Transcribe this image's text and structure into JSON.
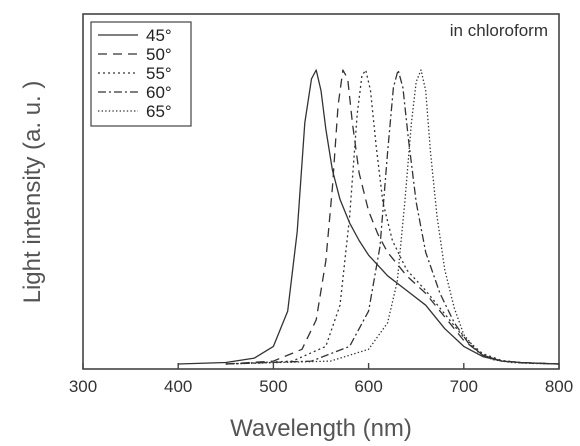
{
  "chart_data": {
    "type": "line",
    "title": "",
    "annotation": "in chloroform",
    "xlabel": "Wavelength (nm)",
    "ylabel": "Light intensity (a. u. )",
    "xlim": [
      300,
      800
    ],
    "ylim": [
      0,
      1.08
    ],
    "x_ticks": [
      "300",
      "400",
      "500",
      "600",
      "700",
      "800"
    ],
    "grid": false,
    "legend_position": "top-left",
    "series": [
      {
        "name": "45°",
        "dash": "solid",
        "x": [
          400,
          450,
          480,
          500,
          515,
          525,
          533,
          540,
          545,
          550,
          555,
          562,
          570,
          580,
          590,
          600,
          620,
          640,
          660,
          680,
          700,
          720,
          740,
          760,
          780,
          800
        ],
        "y": [
          0.0,
          0.005,
          0.02,
          0.06,
          0.18,
          0.45,
          0.82,
          0.97,
          1.0,
          0.93,
          0.8,
          0.66,
          0.56,
          0.48,
          0.42,
          0.37,
          0.3,
          0.25,
          0.2,
          0.12,
          0.06,
          0.025,
          0.01,
          0.005,
          0.002,
          0.0
        ]
      },
      {
        "name": "50°",
        "dash": "dashed",
        "x": [
          450,
          500,
          530,
          545,
          555,
          562,
          568,
          573,
          578,
          583,
          590,
          600,
          610,
          620,
          640,
          660,
          680,
          700,
          720,
          740,
          760,
          800
        ],
        "y": [
          0.0,
          0.01,
          0.05,
          0.15,
          0.35,
          0.6,
          0.88,
          1.0,
          0.97,
          0.82,
          0.65,
          0.52,
          0.44,
          0.38,
          0.3,
          0.24,
          0.16,
          0.08,
          0.03,
          0.01,
          0.005,
          0.0
        ]
      },
      {
        "name": "55°",
        "dash": "dotted",
        "x": [
          450,
          520,
          555,
          570,
          580,
          588,
          593,
          597,
          602,
          608,
          615,
          625,
          640,
          660,
          680,
          700,
          720,
          740,
          760,
          800
        ],
        "y": [
          0.0,
          0.01,
          0.06,
          0.2,
          0.5,
          0.85,
          0.98,
          1.0,
          0.93,
          0.74,
          0.55,
          0.42,
          0.32,
          0.25,
          0.17,
          0.09,
          0.035,
          0.012,
          0.005,
          0.0
        ]
      },
      {
        "name": "60°",
        "dash": "dash-dot",
        "x": [
          450,
          540,
          580,
          600,
          612,
          620,
          626,
          631,
          636,
          642,
          650,
          660,
          675,
          690,
          705,
          720,
          740,
          760,
          800
        ],
        "y": [
          0.0,
          0.01,
          0.06,
          0.18,
          0.4,
          0.72,
          0.94,
          1.0,
          0.94,
          0.76,
          0.55,
          0.38,
          0.24,
          0.14,
          0.07,
          0.03,
          0.01,
          0.004,
          0.0
        ]
      },
      {
        "name": "65°",
        "dash": "fine-dotted",
        "x": [
          450,
          560,
          600,
          620,
          630,
          638,
          645,
          650,
          655,
          660,
          665,
          672,
          680,
          690,
          700,
          715,
          730,
          750,
          770,
          800
        ],
        "y": [
          0.0,
          0.01,
          0.05,
          0.14,
          0.28,
          0.55,
          0.82,
          0.96,
          1.0,
          0.93,
          0.72,
          0.5,
          0.32,
          0.19,
          0.1,
          0.04,
          0.015,
          0.005,
          0.002,
          0.0
        ]
      }
    ]
  }
}
